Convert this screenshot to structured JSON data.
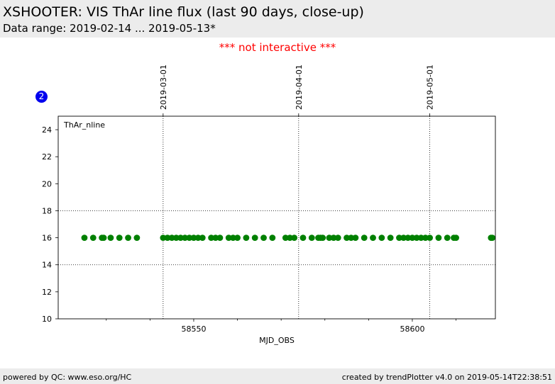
{
  "header": {
    "title": "XSHOOTER: VIS ThAr line flux (last 90 days, close-up)",
    "subtitle": "Data range: 2019-02-14 ... 2019-05-13*"
  },
  "notice": "*** not interactive ***",
  "badge": "2",
  "footer": {
    "left": "powered by QC: www.eso.org/HC",
    "right": "created by trendPlotter v4.0 on 2019-05-14T22:38:51"
  },
  "colors": {
    "points": "#008000",
    "notice": "#ff0000",
    "badge": "#0000ee"
  },
  "chart_data": {
    "type": "scatter",
    "title": "",
    "xlabel": "MJD_OBS",
    "ylabel": "",
    "xlim": [
      58519,
      58619
    ],
    "ylim": [
      10,
      25
    ],
    "yticks": [
      10,
      12,
      14,
      16,
      18,
      20,
      22,
      24
    ],
    "xticks_labeled": [
      58550,
      58600
    ],
    "xticks_minor": [
      58530,
      58540,
      58560,
      58570,
      58580,
      58590,
      58610
    ],
    "top_axis": [
      {
        "label": "2019-03-01",
        "x": 58543
      },
      {
        "label": "2019-04-01",
        "x": 58574
      },
      {
        "label": "2019-05-01",
        "x": 58604
      }
    ],
    "reference_lines_y": [
      14,
      18
    ],
    "legend": "top-left",
    "series": [
      {
        "name": "ThAr_nline",
        "color": "#008000",
        "x": [
          58525,
          58527,
          58529,
          58529.4,
          58531,
          58533,
          58535,
          58537,
          58543,
          58544,
          58545,
          58546,
          58547,
          58548,
          58549,
          58550,
          58551,
          58552,
          58554,
          58555,
          58556,
          58558,
          58559,
          58560,
          58562,
          58564,
          58566,
          58568,
          58571,
          58572,
          58573,
          58575,
          58577,
          58578.5,
          58579,
          58579.5,
          58581,
          58582,
          58583,
          58585,
          58586,
          58587,
          58589,
          58591,
          58593,
          58595,
          58597,
          58598,
          58599,
          58600,
          58601,
          58602,
          58603,
          58604,
          58606,
          58608,
          58609.5,
          58610,
          58618,
          58618.3
        ],
        "y": [
          16,
          16,
          16,
          16,
          16,
          16,
          16,
          16,
          16,
          16,
          16,
          16,
          16,
          16,
          16,
          16,
          16,
          16,
          16,
          16,
          16,
          16,
          16,
          16,
          16,
          16,
          16,
          16,
          16,
          16,
          16,
          16,
          16,
          16,
          16,
          16,
          16,
          16,
          16,
          16,
          16,
          16,
          16,
          16,
          16,
          16,
          16,
          16,
          16,
          16,
          16,
          16,
          16,
          16,
          16,
          16,
          16,
          16,
          16,
          16
        ]
      }
    ]
  }
}
